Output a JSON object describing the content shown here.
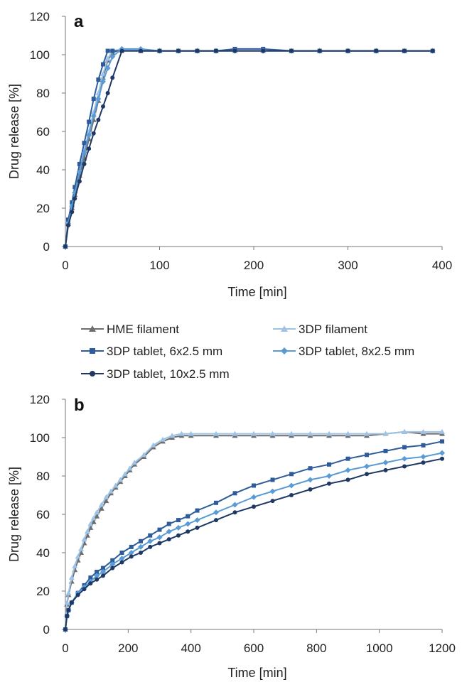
{
  "legend": [
    {
      "name": "HME filament",
      "color": "#6e6e6e",
      "marker": "triangle"
    },
    {
      "name": "3DP filament",
      "color": "#9dc3e6",
      "marker": "triangle"
    },
    {
      "name": "3DP tablet, 6x2.5 mm",
      "color": "#2e5c9a",
      "marker": "square"
    },
    {
      "name": "3DP tablet, 8x2.5 mm",
      "color": "#5b9bd5",
      "marker": "diamond"
    },
    {
      "name": "3DP tablet, 10x2.5 mm",
      "color": "#1f3864",
      "marker": "circle"
    }
  ],
  "chart_data": [
    {
      "type": "line",
      "panel_label": "a",
      "xlabel": "Time [min]",
      "ylabel": "Drug release [%]",
      "xlim": [
        0,
        400
      ],
      "ylim": [
        0,
        120
      ],
      "xticks": [
        0,
        100,
        200,
        300,
        400
      ],
      "yticks": [
        0,
        20,
        40,
        60,
        80,
        100,
        120
      ],
      "grid": false,
      "series": [
        {
          "name": "HME filament",
          "x": [
            0,
            3,
            7,
            10,
            15,
            20,
            25,
            30,
            35,
            40,
            45,
            50,
            60,
            80,
            100,
            120,
            140,
            160,
            180,
            210,
            240,
            270,
            300,
            330,
            360,
            390
          ],
          "y": [
            0,
            12,
            20,
            27,
            37,
            46,
            56,
            66,
            76,
            88,
            97,
            101,
            103,
            102,
            102,
            102,
            102,
            102,
            102,
            102,
            102,
            102,
            102,
            102,
            102,
            102
          ]
        },
        {
          "name": "3DP filament",
          "x": [
            0,
            3,
            7,
            10,
            15,
            20,
            25,
            30,
            35,
            40,
            45,
            50,
            60,
            80,
            100,
            120,
            140,
            160,
            180,
            210,
            240,
            270,
            300,
            330,
            360,
            390
          ],
          "y": [
            0,
            13,
            21,
            29,
            40,
            50,
            60,
            70,
            80,
            90,
            98,
            102,
            103,
            102,
            102,
            102,
            102,
            102,
            102,
            102,
            102,
            102,
            102,
            102,
            102,
            102
          ]
        },
        {
          "name": "3DP tablet, 6x2.5 mm",
          "x": [
            0,
            3,
            7,
            10,
            15,
            20,
            25,
            30,
            35,
            40,
            45,
            50,
            60,
            80,
            100,
            120,
            140,
            160,
            180,
            210,
            240,
            270,
            300,
            330,
            360,
            390
          ],
          "y": [
            0,
            14,
            23,
            31,
            43,
            54,
            65,
            77,
            87,
            95,
            102,
            102,
            102,
            102,
            102,
            102,
            102,
            102,
            103,
            103,
            102,
            102,
            102,
            102,
            102,
            102
          ]
        },
        {
          "name": "3DP tablet, 8x2.5 mm",
          "x": [
            0,
            3,
            7,
            10,
            15,
            20,
            25,
            30,
            35,
            40,
            45,
            50,
            60,
            80,
            100,
            120,
            140,
            160,
            180,
            210,
            240,
            270,
            300,
            330,
            360,
            390
          ],
          "y": [
            0,
            12,
            21,
            28,
            39,
            49,
            58,
            68,
            77,
            86,
            93,
            99,
            103,
            103,
            102,
            102,
            102,
            102,
            102,
            102,
            102,
            102,
            102,
            102,
            102,
            102
          ]
        },
        {
          "name": "3DP tablet, 10x2.5 mm",
          "x": [
            0,
            3,
            7,
            10,
            15,
            20,
            25,
            30,
            35,
            40,
            45,
            50,
            60,
            80,
            100,
            120,
            140,
            160,
            180,
            210,
            240,
            270,
            300,
            330,
            360,
            390
          ],
          "y": [
            0,
            11,
            18,
            25,
            34,
            43,
            51,
            59,
            66,
            73,
            80,
            88,
            102,
            102,
            102,
            102,
            102,
            102,
            102,
            102,
            102,
            102,
            102,
            102,
            102,
            102
          ]
        }
      ]
    },
    {
      "type": "line",
      "panel_label": "b",
      "xlabel": "Time [min]",
      "ylabel": "Drug release [%]",
      "xlim": [
        0,
        1200
      ],
      "ylim": [
        0,
        120
      ],
      "xticks": [
        0,
        200,
        400,
        600,
        800,
        1000,
        1200
      ],
      "yticks": [
        0,
        20,
        40,
        60,
        80,
        100,
        120
      ],
      "grid": false,
      "series": [
        {
          "name": "HME filament",
          "x": [
            0,
            5,
            10,
            20,
            30,
            40,
            50,
            60,
            70,
            80,
            90,
            100,
            115,
            130,
            145,
            160,
            175,
            190,
            205,
            220,
            250,
            280,
            310,
            340,
            370,
            400,
            480,
            540,
            600,
            660,
            720,
            780,
            840,
            900,
            960,
            1020,
            1080,
            1140,
            1200
          ],
          "y": [
            0,
            13,
            18,
            25,
            31,
            36,
            40,
            45,
            49,
            53,
            56,
            59,
            63,
            67,
            71,
            74,
            77,
            80,
            83,
            86,
            90,
            95,
            98,
            100,
            101,
            101,
            101,
            101,
            101,
            101,
            101,
            101,
            101,
            101,
            101,
            102,
            103,
            102,
            102
          ]
        },
        {
          "name": "3DP filament",
          "x": [
            0,
            5,
            10,
            20,
            30,
            40,
            50,
            60,
            70,
            80,
            90,
            100,
            115,
            130,
            145,
            160,
            175,
            190,
            205,
            220,
            250,
            280,
            310,
            340,
            370,
            400,
            480,
            540,
            600,
            660,
            720,
            780,
            840,
            900,
            960,
            1020,
            1080,
            1140,
            1200
          ],
          "y": [
            0,
            14,
            19,
            27,
            33,
            38,
            42,
            47,
            51,
            55,
            58,
            61,
            65,
            69,
            72,
            75,
            78,
            81,
            84,
            87,
            91,
            96,
            99,
            101,
            102,
            102,
            102,
            102,
            102,
            102,
            102,
            102,
            102,
            102,
            102,
            102,
            103,
            103,
            103
          ]
        },
        {
          "name": "3DP tablet, 6x2.5 mm",
          "x": [
            0,
            5,
            10,
            20,
            40,
            60,
            80,
            100,
            120,
            150,
            180,
            210,
            240,
            270,
            300,
            330,
            360,
            390,
            420,
            480,
            540,
            600,
            660,
            720,
            780,
            840,
            900,
            960,
            1020,
            1080,
            1140,
            1200
          ],
          "y": [
            0,
            7,
            10,
            14,
            19,
            23,
            27,
            30,
            32,
            36,
            40,
            43,
            46,
            49,
            52,
            55,
            57,
            59,
            62,
            66,
            71,
            75,
            78,
            81,
            84,
            86,
            89,
            91,
            93,
            95,
            96,
            98
          ]
        },
        {
          "name": "3DP tablet, 8x2.5 mm",
          "x": [
            0,
            5,
            10,
            20,
            40,
            60,
            80,
            100,
            120,
            150,
            180,
            210,
            240,
            270,
            300,
            330,
            360,
            390,
            420,
            480,
            540,
            600,
            660,
            720,
            780,
            840,
            900,
            960,
            1020,
            1080,
            1140,
            1200
          ],
          "y": [
            0,
            7,
            10,
            14,
            19,
            22,
            25,
            28,
            30,
            34,
            37,
            40,
            43,
            46,
            48,
            51,
            53,
            55,
            57,
            61,
            65,
            69,
            72,
            75,
            78,
            80,
            83,
            85,
            87,
            89,
            90,
            92
          ]
        },
        {
          "name": "3DP tablet, 10x2.5 mm",
          "x": [
            0,
            5,
            10,
            20,
            40,
            60,
            80,
            100,
            120,
            150,
            180,
            210,
            240,
            270,
            300,
            330,
            360,
            390,
            420,
            480,
            540,
            600,
            660,
            720,
            780,
            840,
            900,
            960,
            1020,
            1080,
            1140,
            1200
          ],
          "y": [
            0,
            7,
            10,
            14,
            18,
            21,
            24,
            26,
            28,
            32,
            35,
            38,
            40,
            43,
            45,
            47,
            49,
            51,
            53,
            57,
            61,
            64,
            67,
            70,
            73,
            76,
            78,
            81,
            83,
            85,
            87,
            89
          ]
        }
      ]
    }
  ]
}
